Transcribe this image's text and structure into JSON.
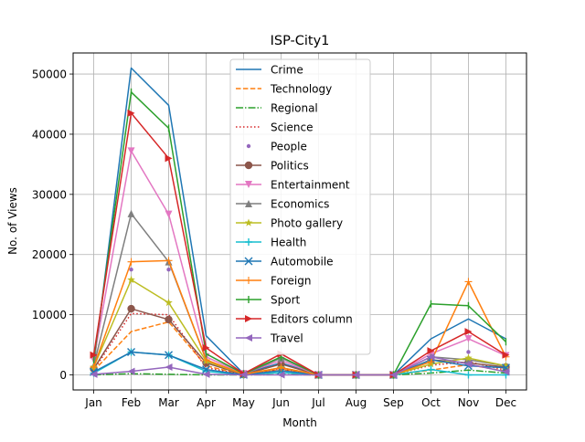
{
  "chart_data": {
    "type": "line",
    "title": "ISP-City1",
    "xlabel": "Month",
    "ylabel": "No. of Views",
    "categories": [
      "Jan",
      "Feb",
      "Mar",
      "Apr",
      "May",
      "Jun",
      "Jul",
      "Aug",
      "Sep",
      "Oct",
      "Nov",
      "Dec"
    ],
    "ylim": [
      -2500,
      53500
    ],
    "yticks": [
      0,
      10000,
      20000,
      30000,
      40000,
      50000
    ],
    "ytick_labels": [
      "0",
      "10000",
      "20000",
      "30000",
      "40000",
      "50000"
    ],
    "grid": true,
    "legend_position": "upper-center",
    "series": [
      {
        "name": "Crime",
        "color": "#1f77b4",
        "dash": "solid",
        "marker": "none",
        "values": [
          1500,
          51000,
          44800,
          6500,
          200,
          2000,
          0,
          0,
          0,
          6000,
          9300,
          6000
        ]
      },
      {
        "name": "Technology",
        "color": "#ff7f0e",
        "dash": "dashed",
        "marker": "none",
        "values": [
          700,
          7200,
          8800,
          1500,
          50,
          900,
          0,
          0,
          0,
          800,
          1700,
          600
        ]
      },
      {
        "name": "Regional",
        "color": "#2ca02c",
        "dash": "dashdot",
        "marker": "none",
        "values": [
          0,
          200,
          100,
          0,
          0,
          50,
          0,
          0,
          0,
          300,
          800,
          300
        ]
      },
      {
        "name": "Science",
        "color": "#d62728",
        "dash": "dotted",
        "marker": "none",
        "values": [
          800,
          10200,
          10000,
          1200,
          50,
          1000,
          0,
          0,
          0,
          1600,
          2200,
          800
        ]
      },
      {
        "name": "People",
        "color": "#9467bd",
        "dash": "none",
        "marker": "dot",
        "values": [
          1000,
          17500,
          17500,
          2200,
          80,
          1500,
          0,
          0,
          0,
          2800,
          3800,
          1500
        ]
      },
      {
        "name": "Politics",
        "color": "#8c564b",
        "dash": "solid",
        "marker": "circle",
        "values": [
          1000,
          11000,
          9200,
          2000,
          50,
          1800,
          0,
          0,
          0,
          2500,
          2000,
          1300
        ]
      },
      {
        "name": "Entertainment",
        "color": "#e377c2",
        "dash": "solid",
        "marker": "triangle-down",
        "values": [
          2500,
          37200,
          26700,
          3000,
          200,
          2400,
          0,
          0,
          0,
          3500,
          6000,
          3200
        ]
      },
      {
        "name": "Economics",
        "color": "#7f7f7f",
        "dash": "solid",
        "marker": "triangle-up",
        "values": [
          1500,
          26800,
          18800,
          2500,
          100,
          2800,
          0,
          0,
          0,
          3000,
          2500,
          1500
        ]
      },
      {
        "name": "Photo gallery",
        "color": "#bcbd22",
        "dash": "solid",
        "marker": "star",
        "values": [
          1300,
          15800,
          12000,
          2300,
          100,
          1200,
          0,
          0,
          0,
          1800,
          2800,
          1500
        ]
      },
      {
        "name": "Health",
        "color": "#17becf",
        "dash": "solid",
        "marker": "plus",
        "values": [
          300,
          3800,
          3300,
          600,
          20,
          400,
          0,
          0,
          0,
          900,
          0,
          0
        ]
      },
      {
        "name": "Automobile",
        "color": "#1f77b4",
        "dash": "solid",
        "marker": "x",
        "values": [
          500,
          3800,
          3300,
          900,
          30,
          700,
          0,
          0,
          0,
          2500,
          1500,
          1200
        ]
      },
      {
        "name": "Foreign",
        "color": "#ff7f0e",
        "dash": "solid",
        "marker": "plus-thin",
        "values": [
          1300,
          18800,
          19000,
          2500,
          100,
          1200,
          0,
          0,
          0,
          2200,
          15500,
          3000
        ]
      },
      {
        "name": "Sport",
        "color": "#2ca02c",
        "dash": "solid",
        "marker": "line-v",
        "values": [
          2500,
          47000,
          41000,
          3500,
          200,
          3000,
          0,
          0,
          0,
          11800,
          11500,
          5500
        ]
      },
      {
        "name": "Editors column",
        "color": "#d62728",
        "dash": "solid",
        "marker": "triangle-right",
        "values": [
          3300,
          43500,
          36000,
          4500,
          200,
          3500,
          0,
          0,
          0,
          4000,
          7200,
          3300
        ]
      },
      {
        "name": "Travel",
        "color": "#9467bd",
        "dash": "solid",
        "marker": "triangle-left",
        "values": [
          100,
          600,
          1300,
          100,
          20,
          0,
          0,
          0,
          0,
          3000,
          1800,
          500
        ]
      }
    ]
  }
}
